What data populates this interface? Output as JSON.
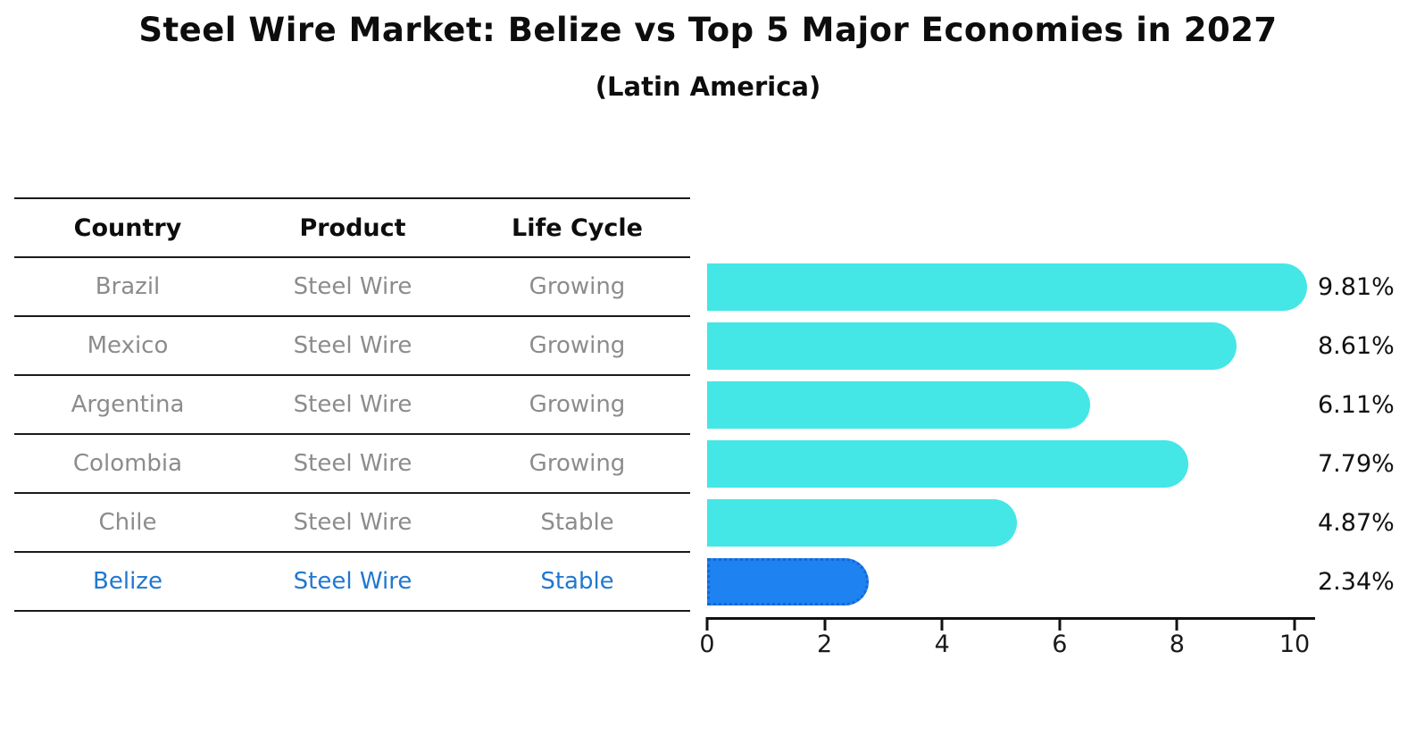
{
  "title": "Steel Wire Market: Belize vs Top 5 Major Economies in 2027",
  "subtitle": "(Latin America)",
  "table": {
    "headers": [
      "Country",
      "Product",
      "Life Cycle"
    ],
    "rows": [
      {
        "country": "Brazil",
        "product": "Steel Wire",
        "life_cycle": "Growing",
        "highlighted": false
      },
      {
        "country": "Mexico",
        "product": "Steel Wire",
        "life_cycle": "Growing",
        "highlighted": false
      },
      {
        "country": "Argentina",
        "product": "Steel Wire",
        "life_cycle": "Growing",
        "highlighted": false
      },
      {
        "country": "Colombia",
        "product": "Steel Wire",
        "life_cycle": "Growing",
        "highlighted": false
      },
      {
        "country": "Chile",
        "product": "Steel Wire",
        "life_cycle": "Stable",
        "highlighted": false
      },
      {
        "country": "Belize",
        "product": "Steel Wire",
        "life_cycle": "Stable",
        "highlighted": true
      }
    ]
  },
  "chart_data": {
    "type": "bar",
    "orientation": "horizontal",
    "title": "Steel Wire Market: Belize vs Top 5 Major Economies in 2027",
    "subtitle": "(Latin America)",
    "categories": [
      "Brazil",
      "Mexico",
      "Argentina",
      "Colombia",
      "Chile",
      "Belize"
    ],
    "values": [
      9.81,
      8.61,
      6.11,
      7.79,
      4.87,
      2.34
    ],
    "value_labels": [
      "9.81%",
      "8.61%",
      "6.11%",
      "7.79%",
      "4.87%",
      "2.34%"
    ],
    "xlabel": "",
    "ylabel": "",
    "xlim": [
      0,
      10.33
    ],
    "xticks": [
      0,
      2,
      4,
      6,
      8,
      10
    ],
    "grid": false,
    "legend": "none",
    "highlighted_category": "Belize",
    "colors": {
      "bar_default": "#45E6E6",
      "bar_highlight": "#1E82F0",
      "bar_highlight_border": "#1566D9",
      "highlight_text": "#1F78D1",
      "table_row_text": "#8C8C8C",
      "text": "#111111"
    }
  }
}
